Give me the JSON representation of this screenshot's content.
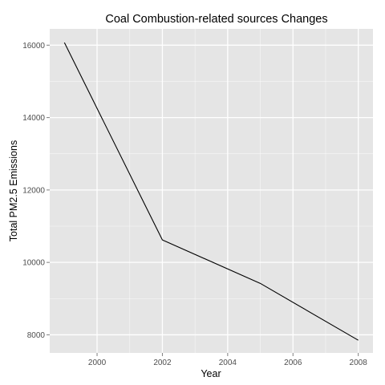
{
  "chart_data": {
    "type": "line",
    "title": "Coal Combustion-related sources Changes",
    "xlabel": "Year",
    "ylabel": "Total PM2.5 Emissions",
    "x": [
      1999,
      2002,
      2005,
      2008
    ],
    "series": [
      {
        "values": [
          16070,
          10620,
          9420,
          7850
        ]
      }
    ],
    "xlim": [
      1998.55,
      2008.45
    ],
    "ylim": [
      7500,
      16450
    ],
    "x_ticks": [
      2000,
      2002,
      2004,
      2006,
      2008
    ],
    "y_ticks": [
      8000,
      10000,
      12000,
      14000,
      16000
    ],
    "grid": true,
    "colors": {
      "panel_background": "#e5e5e5",
      "grid_line": "#ffffff",
      "series_line": "#000000",
      "tick_label": "#4d4d4d"
    }
  }
}
